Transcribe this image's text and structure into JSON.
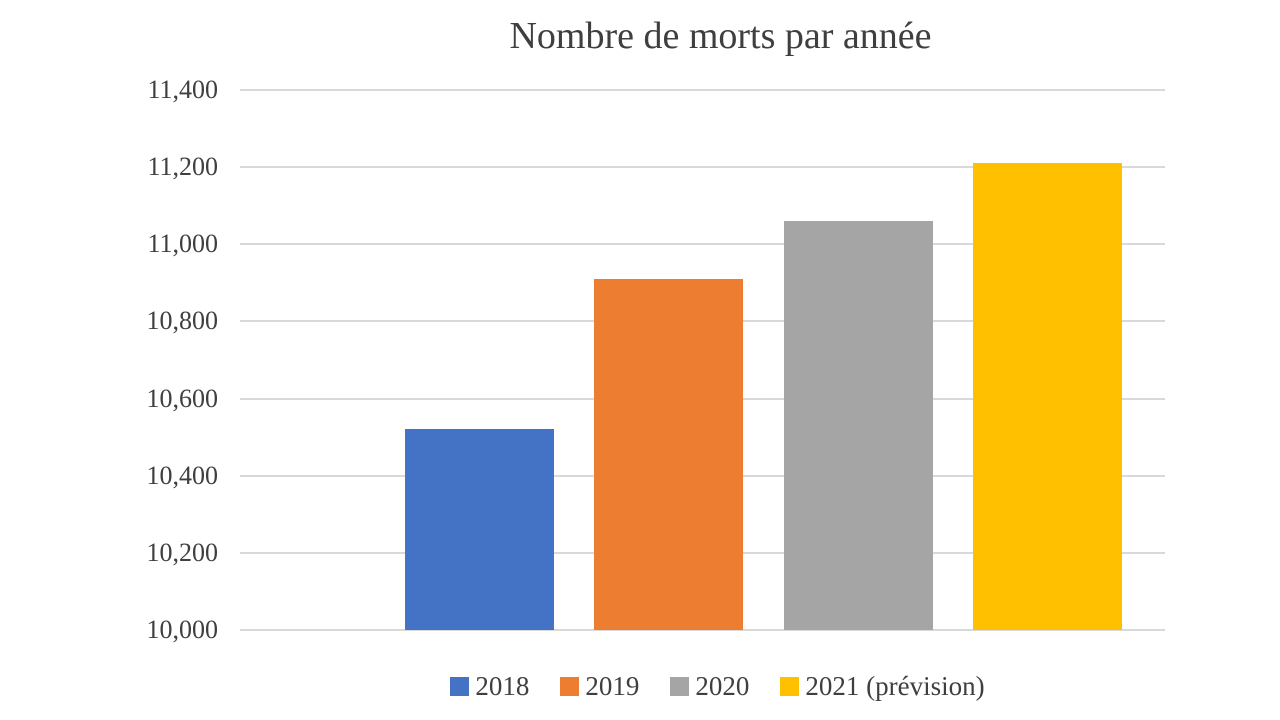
{
  "chart_data": {
    "type": "bar",
    "title": "Nombre de morts par année",
    "categories": [
      "2018",
      "2019",
      "2020",
      "2021 (prévision)"
    ],
    "values": [
      10520,
      10910,
      11060,
      11210
    ],
    "colors": [
      "#4472C4",
      "#ED7D31",
      "#A5A5A5",
      "#FFC000"
    ],
    "xlabel": "",
    "ylabel": "",
    "ylim": [
      10000,
      11400
    ],
    "ytick_step": 200,
    "ytick_labels": [
      "10,000",
      "10,200",
      "10,400",
      "10,600",
      "10,800",
      "11,000",
      "11,200",
      "11,400"
    ],
    "grid": "horizontal",
    "legend_position": "bottom",
    "text_color": "#3f3f3f",
    "gridline_color": "#d9d9d9",
    "background_color": "#ffffff"
  }
}
